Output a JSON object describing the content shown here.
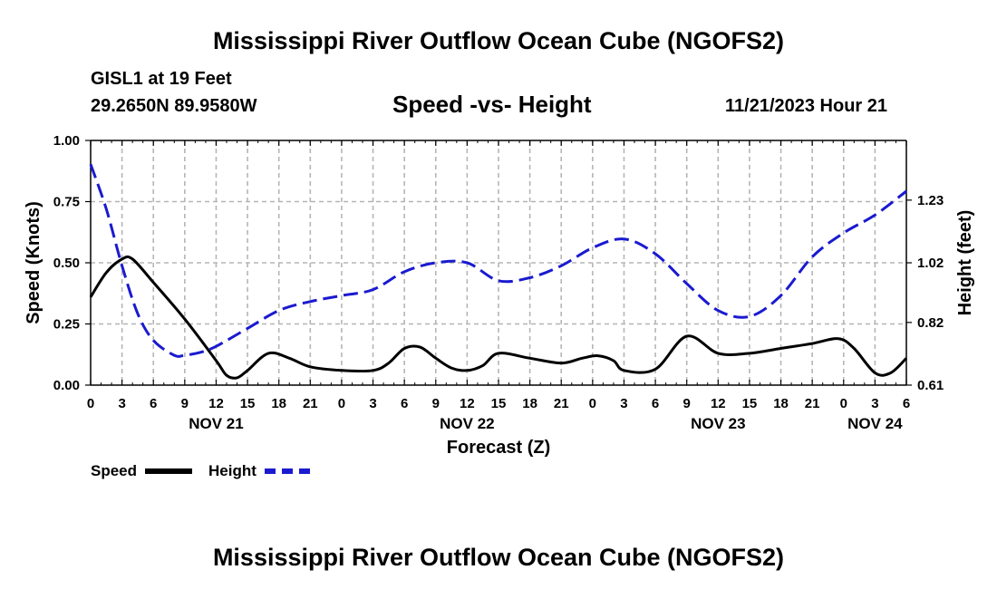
{
  "page_title": "Mississippi River Outflow Ocean Cube (NGOFS2)",
  "page_title_repeat": "Mississippi River Outflow Ocean Cube (NGOFS2)",
  "station": {
    "name_depth": "GISL1 at 19 Feet",
    "coords": "29.2650N  89.9580W",
    "timestamp": "11/21/2023 Hour 21"
  },
  "legend": {
    "speed_label": "Speed",
    "height_label": "Height"
  },
  "chart_data": {
    "type": "line",
    "title": "Speed -vs- Height",
    "xlabel": "Forecast (Z)",
    "ylabel": "Speed (Knots)",
    "y2label": "Height (feet)",
    "ylim": [
      0,
      1
    ],
    "y2lim": [
      0.61,
      1.43
    ],
    "xlim": [
      0,
      78
    ],
    "grid": true,
    "x_tick_positions": [
      0,
      3,
      6,
      9,
      12,
      15,
      18,
      21,
      24,
      27,
      30,
      33,
      36,
      39,
      42,
      45,
      48,
      51,
      54,
      57,
      60,
      63,
      66,
      69,
      72,
      75,
      78
    ],
    "x_tick_labels": [
      "0",
      "3",
      "6",
      "9",
      "12",
      "15",
      "18",
      "21",
      "0",
      "3",
      "6",
      "9",
      "12",
      "15",
      "18",
      "21",
      "0",
      "3",
      "6",
      "9",
      "12",
      "15",
      "18",
      "21",
      "0",
      "3",
      "6"
    ],
    "y_ticks": [
      0,
      0.25,
      0.5,
      0.75,
      1.0
    ],
    "y_tick_labels": [
      "0.00",
      "0.25",
      "0.50",
      "0.75",
      "1.00"
    ],
    "y2_ticks": [
      0.61,
      0.82,
      1.02,
      1.23
    ],
    "y2_tick_labels": [
      "0.61",
      "0.82",
      "1.02",
      "1.23"
    ],
    "date_labels": [
      {
        "x": 12,
        "label": "NOV 21"
      },
      {
        "x": 36,
        "label": "NOV 22"
      },
      {
        "x": 60,
        "label": "NOV 23"
      },
      {
        "x": 75,
        "label": "NOV 24"
      }
    ],
    "series": [
      {
        "name": "Speed",
        "axis": "left",
        "color": "#000000",
        "style": "solid",
        "x": [
          0,
          1.5,
          3,
          4,
          6,
          9,
          12,
          13,
          14,
          15,
          17,
          19,
          21,
          24,
          27,
          28.5,
          30,
          31.5,
          33,
          34.5,
          36,
          37.5,
          39,
          42,
          45,
          47,
          48.5,
          50,
          51,
          54,
          57,
          60,
          63,
          66,
          69,
          71.5,
          73,
          75,
          76.5,
          78
        ],
        "values": [
          0.36,
          0.46,
          0.515,
          0.515,
          0.42,
          0.27,
          0.1,
          0.04,
          0.03,
          0.06,
          0.13,
          0.11,
          0.075,
          0.06,
          0.06,
          0.09,
          0.15,
          0.155,
          0.11,
          0.07,
          0.06,
          0.08,
          0.13,
          0.11,
          0.09,
          0.11,
          0.12,
          0.1,
          0.06,
          0.065,
          0.2,
          0.13,
          0.13,
          0.15,
          0.17,
          0.19,
          0.15,
          0.05,
          0.05,
          0.11
        ]
      },
      {
        "name": "Height",
        "axis": "right",
        "color": "#1a1ad0",
        "style": "dashed",
        "x": [
          0,
          1.5,
          3,
          4.5,
          6,
          8,
          9,
          10.5,
          12,
          15,
          18,
          21,
          24,
          27,
          30,
          33,
          36,
          39,
          42,
          45,
          48,
          51,
          54,
          57,
          60,
          63,
          66,
          69,
          72,
          75,
          78
        ],
        "values": [
          1.35,
          1.2,
          1.01,
          0.85,
          0.76,
          0.71,
          0.71,
          0.72,
          0.74,
          0.8,
          0.86,
          0.89,
          0.91,
          0.93,
          0.99,
          1.02,
          1.02,
          0.96,
          0.97,
          1.01,
          1.07,
          1.1,
          1.05,
          0.95,
          0.86,
          0.84,
          0.91,
          1.04,
          1.12,
          1.18,
          1.26
        ]
      }
    ]
  }
}
